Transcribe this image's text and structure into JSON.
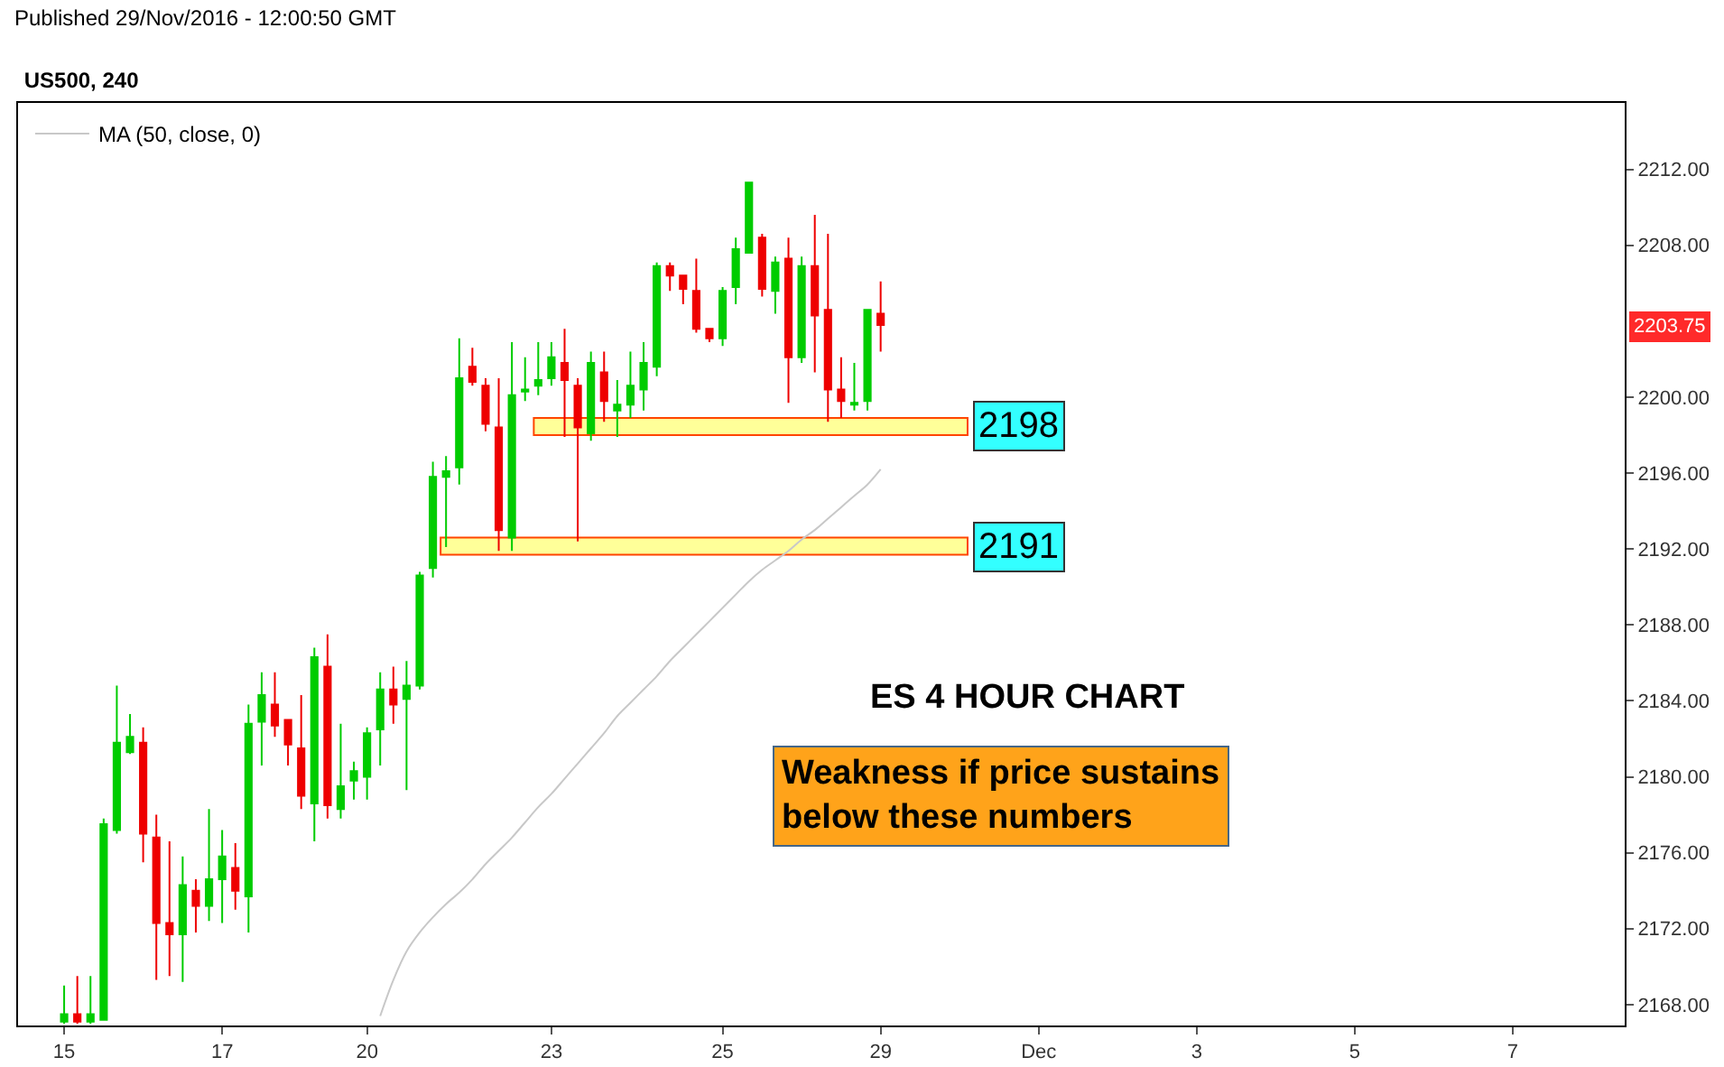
{
  "chart_data": {
    "type": "candlestick",
    "title": "US500, 240",
    "categories": [
      null,
      null,
      null,
      "15",
      null,
      null,
      null,
      null,
      null,
      null,
      null,
      null,
      null,
      null,
      null,
      "17",
      null,
      null,
      null,
      null,
      null,
      null,
      null,
      null,
      null,
      null,
      "20",
      null,
      null,
      null,
      null,
      null,
      null,
      null,
      null,
      null,
      null,
      null,
      null,
      null,
      "23",
      null,
      null,
      null,
      null,
      null,
      null,
      null,
      null,
      null,
      null,
      null,
      null,
      "25",
      null,
      null,
      null,
      null,
      null,
      null,
      null,
      null,
      null,
      null,
      null,
      "29",
      null,
      null,
      null,
      null,
      null,
      null,
      null,
      null,
      null,
      null,
      null,
      "Dec",
      null,
      null,
      null,
      null,
      null,
      null,
      null,
      null,
      null,
      null,
      null,
      "3",
      null,
      null,
      null,
      null,
      null,
      null,
      null,
      null,
      null,
      null,
      null,
      "5",
      null,
      null,
      null,
      null,
      null,
      null,
      null,
      null,
      null,
      null,
      null,
      "7",
      null,
      null,
      null,
      null,
      null,
      null,
      null,
      null
    ],
    "ohlc": [
      null,
      null,
      null,
      [
        2167.1,
        2169,
        2167.0,
        2167.5
      ],
      [
        2167.5,
        2169.5,
        2167.0,
        2167.1
      ],
      [
        2167.1,
        2169.5,
        2167.0,
        2167.5
      ],
      [
        2167.2,
        2177.8,
        2167.2,
        2177.5
      ],
      [
        2177.2,
        2184.8,
        2177.0,
        2181.8
      ],
      [
        2181.3,
        2183.3,
        2181.2,
        2182.1
      ],
      [
        2181.8,
        2182.6,
        2175.5,
        2177.0
      ],
      [
        2176.8,
        2178.0,
        2169.3,
        2172.3
      ],
      [
        2172.3,
        2176.6,
        2169.5,
        2171.7
      ],
      [
        2171.7,
        2175.8,
        2169.2,
        2174.3
      ],
      [
        2174.0,
        2174.6,
        2171.8,
        2173.2
      ],
      [
        2173.2,
        2178.3,
        2172.4,
        2174.6
      ],
      [
        2174.6,
        2177.2,
        2172.3,
        2175.8
      ],
      [
        2175.2,
        2176.5,
        2173.0,
        2174.0
      ],
      [
        2173.7,
        2183.8,
        2171.8,
        2182.8
      ],
      [
        2182.9,
        2185.5,
        2180.6,
        2184.3
      ],
      [
        2183.8,
        2185.5,
        2182.1,
        2182.7
      ],
      [
        2183.0,
        2183.0,
        2180.6,
        2181.7
      ],
      [
        2181.5,
        2184.3,
        2178.3,
        2179.0
      ],
      [
        2178.6,
        2186.8,
        2176.6,
        2186.3
      ],
      [
        2185.8,
        2187.5,
        2177.8,
        2178.5
      ],
      [
        2178.3,
        2182.8,
        2177.8,
        2179.5
      ],
      [
        2179.8,
        2180.8,
        2178.8,
        2180.3
      ],
      [
        2180.0,
        2182.6,
        2178.8,
        2182.3
      ],
      [
        2182.5,
        2185.5,
        2180.6,
        2184.6
      ],
      [
        2184.6,
        2185.8,
        2182.8,
        2183.8
      ],
      [
        2184.1,
        2186.1,
        2179.3,
        2184.8
      ],
      [
        2184.8,
        2190.8,
        2184.6,
        2190.6
      ],
      [
        2191.0,
        2196.6,
        2190.5,
        2195.8
      ],
      [
        2195.8,
        2196.9,
        2192.1,
        2196.1
      ],
      [
        2196.3,
        2203.1,
        2195.4,
        2201.0
      ],
      [
        2201.6,
        2202.6,
        2200.6,
        2200.8
      ],
      [
        2200.6,
        2201.0,
        2198.2,
        2198.6
      ],
      [
        2198.4,
        2201.0,
        2191.9,
        2193.0
      ],
      [
        2192.6,
        2202.9,
        2191.9,
        2200.1
      ],
      [
        2200.3,
        2202.1,
        2199.8,
        2200.4
      ],
      [
        2200.6,
        2202.9,
        2200.1,
        2200.9
      ],
      [
        2201.0,
        2202.9,
        2200.6,
        2202.1
      ],
      [
        2201.8,
        2203.6,
        2197.9,
        2200.9
      ],
      [
        2200.6,
        2201.0,
        2192.4,
        2198.4
      ],
      [
        2198.1,
        2202.4,
        2197.7,
        2201.8
      ],
      [
        2201.3,
        2202.4,
        2198.7,
        2199.8
      ],
      [
        2199.3,
        2200.9,
        2197.9,
        2199.6
      ],
      [
        2199.6,
        2202.4,
        2198.9,
        2200.6
      ],
      [
        2200.4,
        2202.9,
        2199.3,
        2201.8
      ],
      [
        2201.6,
        2207.1,
        2201.1,
        2206.9
      ],
      [
        2206.9,
        2207.1,
        2205.6,
        2206.4
      ],
      [
        2206.4,
        2206.4,
        2204.9,
        2205.7
      ],
      [
        2205.6,
        2207.3,
        2203.4,
        2203.6
      ],
      [
        2203.6,
        2203.6,
        2202.9,
        2203.1
      ],
      [
        2203.1,
        2205.8,
        2202.7,
        2205.6
      ],
      [
        2205.8,
        2208.4,
        2204.9,
        2207.8
      ],
      [
        2207.6,
        2211.3,
        2207.6,
        2211.3
      ],
      [
        2208.4,
        2208.6,
        2205.3,
        2205.7
      ],
      [
        2205.6,
        2207.4,
        2204.4,
        2207.1
      ],
      [
        2207.3,
        2208.4,
        2199.7,
        2202.1
      ],
      [
        2202.1,
        2207.4,
        2201.8,
        2206.9
      ],
      [
        2206.9,
        2209.6,
        2201.3,
        2204.3
      ],
      [
        2204.6,
        2208.6,
        2198.7,
        2200.4
      ],
      [
        2200.4,
        2202.1,
        2198.9,
        2199.8
      ],
      [
        2199.6,
        2201.8,
        2199.3,
        2199.7
      ],
      [
        2199.8,
        2204.6,
        2199.3,
        2204.6
      ],
      [
        2204.4,
        2206.1,
        2202.4,
        2203.8
      ],
      null,
      null,
      null,
      null,
      null,
      null,
      null,
      null,
      null,
      null,
      null,
      null,
      null,
      null,
      null,
      null,
      null,
      null,
      null,
      null,
      null,
      null,
      null,
      null,
      null,
      null,
      null,
      null,
      null,
      null,
      null,
      null,
      null,
      null,
      null,
      null,
      null,
      null,
      null,
      null,
      null,
      null,
      null,
      null,
      null,
      null,
      null,
      null,
      null,
      null,
      null,
      null,
      null,
      null,
      null,
      null
    ],
    "colors": [
      null,
      null,
      null,
      "#00cc00",
      "#ee0000",
      "#00cc00",
      "#00cc00",
      "#00cc00",
      "#00cc00",
      "#ee0000",
      "#ee0000",
      "#ee0000",
      "#00cc00",
      "#ee0000",
      "#00cc00",
      "#00cc00",
      "#ee0000",
      "#00cc00",
      "#00cc00",
      "#ee0000",
      "#ee0000",
      "#ee0000",
      "#00cc00",
      "#ee0000",
      "#00cc00",
      "#00cc00",
      "#00cc00",
      "#00cc00",
      "#ee0000",
      "#00cc00",
      "#00cc00",
      "#00cc00",
      "#00cc00",
      "#00cc00",
      "#ee0000",
      "#ee0000",
      "#ee0000",
      "#00cc00",
      "#00cc00",
      "#00cc00",
      "#00cc00",
      "#ee0000",
      "#ee0000",
      "#00cc00",
      "#ee0000",
      "#00cc00",
      "#00cc00",
      "#00cc00",
      "#00cc00",
      "#ee0000",
      "#ee0000",
      "#ee0000",
      "#ee0000",
      "#00cc00",
      "#00cc00",
      "#00cc00",
      "#ee0000",
      "#00cc00",
      "#ee0000",
      "#00cc00",
      "#ee0000",
      "#ee0000",
      "#ee0000",
      "#00cc00",
      "#00cc00",
      "#ee0000",
      null,
      null,
      null,
      null,
      null,
      null,
      null,
      null,
      null,
      null,
      null,
      null,
      null,
      null,
      null,
      null,
      null,
      null,
      null,
      null,
      null,
      null,
      null,
      null,
      null,
      null,
      null,
      null,
      null,
      null,
      null,
      null,
      null,
      null,
      null,
      null,
      null,
      null,
      null,
      null,
      null,
      null,
      null,
      null,
      null,
      null,
      null,
      null,
      null,
      null,
      null,
      null,
      null,
      null,
      null,
      null
    ],
    "series": [
      {
        "type": "line",
        "name": "MA (50, close, 0)",
        "color": "#c8c8c8",
        "values": [
          null,
          null,
          null,
          null,
          null,
          null,
          null,
          null,
          null,
          null,
          null,
          null,
          null,
          null,
          null,
          null,
          null,
          null,
          null,
          null,
          null,
          null,
          null,
          null,
          null,
          null,
          null,
          2167.4,
          2169.3,
          2170.8,
          2171.8,
          2172.6,
          2173.3,
          2173.9,
          2174.6,
          2175.4,
          2176.1,
          2176.8,
          2177.6,
          2178.4,
          2179.1,
          2179.9,
          2180.7,
          2181.5,
          2182.3,
          2183.2,
          2183.9,
          2184.6,
          2185.3,
          2186.1,
          2186.8,
          2187.5,
          2188.2,
          2188.9,
          2189.6,
          2190.3,
          2190.9,
          2191.4,
          2191.9,
          2192.5,
          2193.0,
          2193.6,
          2194.2,
          2194.8,
          2195.4,
          2196.2,
          null,
          null,
          null,
          null,
          null,
          null,
          null,
          null,
          null,
          null,
          null,
          null,
          null,
          null,
          null,
          null,
          null,
          null,
          null,
          null,
          null,
          null,
          null,
          null,
          null,
          null,
          null,
          null,
          null,
          null,
          null,
          null,
          null,
          null,
          null,
          null,
          null,
          null,
          null,
          null,
          null,
          null,
          null,
          null,
          null,
          null,
          null,
          null,
          null,
          null,
          null,
          null,
          null,
          null,
          null,
          null
        ]
      }
    ],
    "ylim": [
      2166.9,
      2215.5
    ],
    "yticks": [
      {
        "value": 2168,
        "label": "2168.00"
      },
      {
        "value": 2172,
        "label": "2172.00"
      },
      {
        "value": 2176,
        "label": "2176.00"
      },
      {
        "value": 2180,
        "label": "2180.00"
      },
      {
        "value": 2184,
        "label": "2184.00"
      },
      {
        "value": 2188,
        "label": "2188.00"
      },
      {
        "value": 2192,
        "label": "2192.00"
      },
      {
        "value": 2196,
        "label": "2196.00"
      },
      {
        "value": 2200,
        "label": "2200.00"
      },
      {
        "value": 2208,
        "label": "2208.00"
      },
      {
        "value": 2212,
        "label": "2212.00"
      }
    ],
    "bands": [
      {
        "axis": "y",
        "from": 2198.0,
        "to": 2198.9,
        "label": "2198",
        "color": "#ffff99"
      },
      {
        "axis": "y",
        "from": 2191.7,
        "to": 2192.6,
        "label": "2191",
        "color": "#ffff99"
      }
    ],
    "annotations": [
      "Published 29/Nov/2016 - 12:00:50 GMT",
      "ES 4 HOUR CHART",
      "Weakness if price sustains\nbelow these numbers",
      "2203.75"
    ],
    "legend": "top left"
  }
}
